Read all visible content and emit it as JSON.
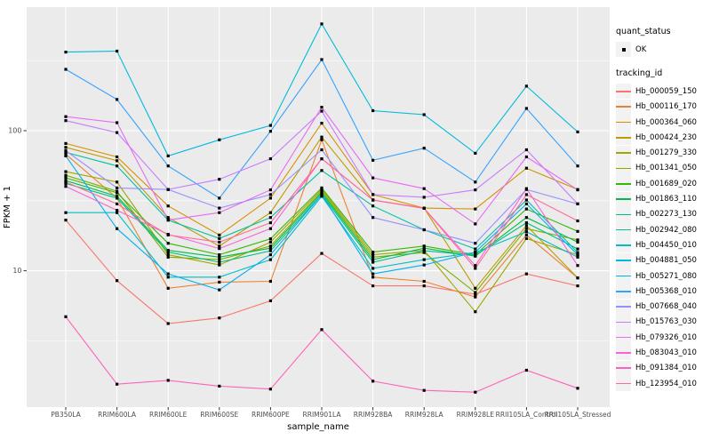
{
  "theme": {
    "panel_bg": "#EBEBEB",
    "grid_color": "#FFFFFF",
    "point_color": "#000000",
    "axis_text_color": "#4D4D4D",
    "axis_title_color": "#000000",
    "legend_key_bg": "#F2F2F2"
  },
  "chart_data": {
    "type": "line",
    "title": "",
    "xlabel": "sample_name",
    "ylabel": "FPKM + 1",
    "y_scale": "log10",
    "grid": true,
    "legend_position": "right",
    "ylim": [
      1.05,
      740
    ],
    "y_ticks": [
      {
        "label": "100",
        "value": 100
      },
      {
        "label": "10",
        "value": 10
      }
    ],
    "categories": [
      "PB350LA",
      "RRIM600LA",
      "RRIM600LE",
      "RRIM600SE",
      "RRIM600PE",
      "RRIM901LA",
      "RRIM928BA",
      "RRIM928LA",
      "RRIM928LE",
      "RRII105LA_Control",
      "RRII105LA_Stressed"
    ],
    "quant_status": {
      "title": "quant_status",
      "entries": [
        {
          "label": "OK",
          "marker": "point",
          "color": "#000000"
        }
      ]
    },
    "tracking": {
      "title": "tracking_id"
    },
    "series": [
      {
        "name": "Hb_000059_150",
        "color": "#F8766D",
        "values": [
          23,
          8.5,
          4.2,
          4.6,
          6.1,
          13.3,
          7.8,
          7.8,
          6.8,
          9.5,
          7.8
        ]
      },
      {
        "name": "Hb_000116_170",
        "color": "#EA8331",
        "values": [
          68,
          33,
          7.5,
          8.3,
          8.4,
          86,
          9,
          8.4,
          6.5,
          18,
          8.9
        ]
      },
      {
        "name": "Hb_000364_060",
        "color": "#D89000",
        "values": [
          81,
          65,
          29,
          18,
          33,
          113,
          35,
          28,
          27.6,
          54,
          38
        ]
      },
      {
        "name": "Hb_000424_230",
        "color": "#C09B00",
        "values": [
          76,
          61,
          24,
          15,
          26,
          90,
          32,
          28,
          7.5,
          21,
          8.9
        ]
      },
      {
        "name": "Hb_001279_330",
        "color": "#A3A500",
        "values": [
          51,
          43,
          13,
          11,
          16,
          38,
          13,
          14,
          5.1,
          17,
          13
        ]
      },
      {
        "name": "Hb_001341_050",
        "color": "#7CAE00",
        "values": [
          48,
          37,
          12.5,
          12,
          15,
          37,
          12.5,
          13.5,
          7,
          20,
          16.6
        ]
      },
      {
        "name": "Hb_001689_020",
        "color": "#39B600",
        "values": [
          46,
          36,
          15.7,
          13,
          16.9,
          39,
          13.6,
          15,
          13,
          27.6,
          19.1
        ]
      },
      {
        "name": "Hb_001863_110",
        "color": "#00BB4E",
        "values": [
          44,
          34,
          14,
          12.5,
          14.5,
          36,
          12,
          14.5,
          12.7,
          24,
          16
        ]
      },
      {
        "name": "Hb_002273_130",
        "color": "#00BF7D",
        "values": [
          42,
          33,
          13.6,
          11.5,
          13.9,
          35,
          11.5,
          13.9,
          12.9,
          22,
          14.3
        ]
      },
      {
        "name": "Hb_002942_080",
        "color": "#00C1A3",
        "values": [
          70,
          56,
          23,
          17,
          24,
          52,
          29,
          19.6,
          14.3,
          32,
          13.5
        ]
      },
      {
        "name": "Hb_004450_010",
        "color": "#00BFC4",
        "values": [
          26,
          26,
          9,
          9,
          12,
          34,
          10.4,
          12,
          13.5,
          19,
          12.5
        ]
      },
      {
        "name": "Hb_004881_050",
        "color": "#00BADE",
        "values": [
          364,
          370,
          66,
          86,
          109,
          578,
          139,
          130,
          69,
          208,
          98
        ]
      },
      {
        "name": "Hb_005271_080",
        "color": "#00B0F6",
        "values": [
          66,
          20,
          9.5,
          7.3,
          13,
          35,
          9.5,
          11,
          13.6,
          30,
          13
        ]
      },
      {
        "name": "Hb_005368_010",
        "color": "#35A2FF",
        "values": [
          274,
          167,
          56,
          33,
          99,
          322,
          61.5,
          75,
          43,
          144,
          56
        ]
      },
      {
        "name": "Hb_007668_040",
        "color": "#9590FF",
        "values": [
          72,
          39,
          38,
          28,
          35,
          73,
          24,
          19.6,
          15.7,
          38,
          30
        ]
      },
      {
        "name": "Hb_015763_030",
        "color": "#C77CFF",
        "values": [
          118,
          97,
          38,
          45,
          63,
          138,
          35,
          33.5,
          37.8,
          73,
          30
        ]
      },
      {
        "name": "Hb_079326_010",
        "color": "#E76BF3",
        "values": [
          126,
          114,
          23,
          26,
          37.8,
          147,
          46,
          38.6,
          21.6,
          65,
          37.8
        ]
      },
      {
        "name": "Hb_083043_010",
        "color": "#FA62DB",
        "values": [
          40,
          27,
          18.2,
          14.4,
          20,
          63,
          32,
          27.9,
          10.9,
          38.6,
          10.9
        ]
      },
      {
        "name": "Hb_091384_010",
        "color": "#FF62BC",
        "values": [
          4.7,
          1.55,
          1.65,
          1.5,
          1.43,
          3.8,
          1.63,
          1.4,
          1.36,
          1.95,
          1.45
        ]
      },
      {
        "name": "Hb_123954_010",
        "color": "#FF6A98",
        "values": [
          43,
          30,
          18,
          16,
          22,
          63,
          32,
          27.9,
          10.4,
          35,
          22.7
        ]
      }
    ]
  }
}
